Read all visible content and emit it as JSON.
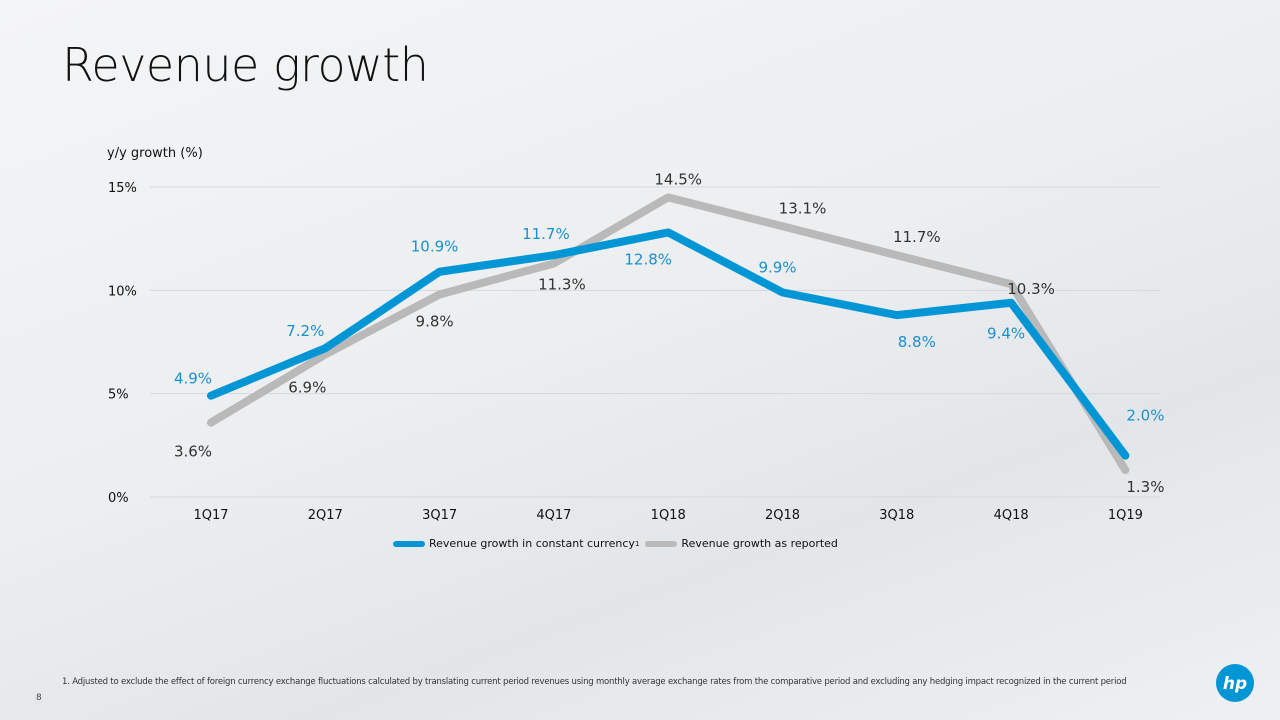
{
  "slide": {
    "title": "Revenue growth",
    "page_number": "8",
    "footnote": "1.  Adjusted to exclude the effect of foreign currency exchange fluctuations calculated by translating current period revenues using monthly average exchange rates from the comparative period and excluding any hedging impact recognized in the current period"
  },
  "chart_data": {
    "type": "line",
    "ylabel": "y/y growth (%)",
    "ylim": [
      0,
      15
    ],
    "yticks": [
      "0%",
      "5%",
      "10%",
      "15%"
    ],
    "categories": [
      "1Q17",
      "2Q17",
      "3Q17",
      "4Q17",
      "1Q18",
      "2Q18",
      "3Q18",
      "4Q18",
      "1Q19"
    ],
    "grid": true,
    "legend_position": "bottom",
    "series": [
      {
        "name": "Revenue growth in constant currency",
        "legend_superscript": "1",
        "color": "#0096d6",
        "values": [
          4.9,
          7.2,
          10.9,
          11.7,
          12.8,
          9.9,
          8.8,
          9.4,
          2.0
        ],
        "labels": [
          "4.9%",
          "7.2%",
          "10.9%",
          "11.7%",
          "12.8%",
          "9.9%",
          "8.8%",
          "9.4%",
          "2.0%"
        ]
      },
      {
        "name": "Revenue growth as reported",
        "color": "#b9b9b9",
        "values": [
          3.6,
          6.9,
          9.8,
          11.3,
          14.5,
          13.1,
          11.7,
          10.3,
          1.3
        ],
        "labels": [
          "3.6%",
          "6.9%",
          "9.8%",
          "11.3%",
          "14.5%",
          "13.1%",
          "11.7%",
          "10.3%",
          "1.3%"
        ]
      }
    ]
  }
}
